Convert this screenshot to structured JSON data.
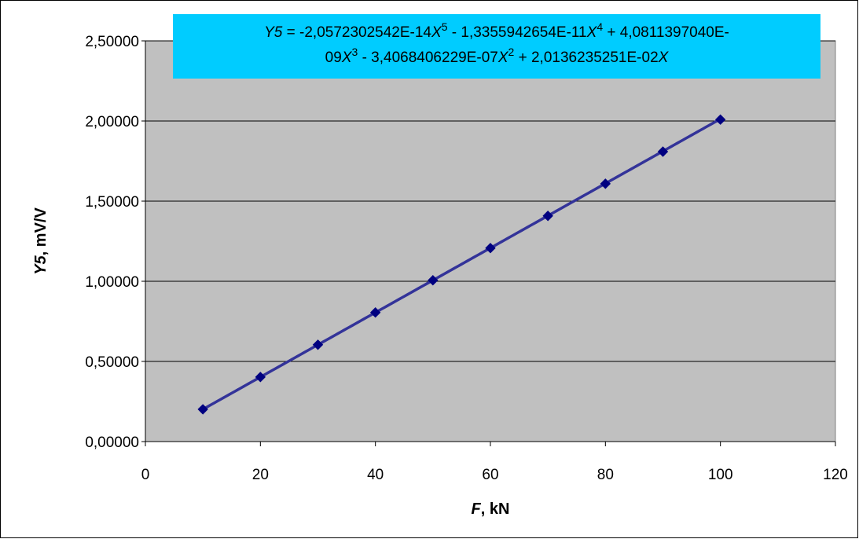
{
  "chart_data": {
    "type": "scatter",
    "trendline": "polynomial",
    "x": [
      10,
      20,
      30,
      40,
      50,
      60,
      70,
      80,
      90,
      100
    ],
    "y": [
      0.2013,
      0.40271,
      0.60404,
      0.80527,
      1.00637,
      1.20732,
      1.40807,
      1.60858,
      1.80882,
      2.00873
    ],
    "xlim": [
      0,
      120
    ],
    "ylim": [
      0,
      2.5
    ],
    "x_ticks": [
      0,
      20,
      40,
      60,
      80,
      100,
      120
    ],
    "y_ticks": [
      0,
      0.5,
      1,
      1.5,
      2,
      2.5
    ],
    "x_tick_labels": [
      "0",
      "20",
      "40",
      "60",
      "80",
      "100",
      "120"
    ],
    "y_tick_labels": [
      "0,00000",
      "0,50000",
      "1,00000",
      "1,50000",
      "2,00000",
      "2,50000"
    ],
    "xlabel": {
      "var": "F",
      "unit": ", kN"
    },
    "ylabel": {
      "var": "Y5",
      "unit": ", mV/V"
    },
    "equation": {
      "line1": [
        {
          "t": "Y5",
          "i": true
        },
        {
          "t": " = -2,0572302542E-14"
        },
        {
          "t": "X",
          "i": true
        },
        {
          "t": "5",
          "sup": true
        },
        {
          "t": " - 1,3355942654E-11"
        },
        {
          "t": "X",
          "i": true
        },
        {
          "t": "4",
          "sup": true
        },
        {
          "t": " + 4,0811397040E-"
        }
      ],
      "line2": [
        {
          "t": "09"
        },
        {
          "t": "X",
          "i": true
        },
        {
          "t": "3",
          "sup": true
        },
        {
          "t": " - 3,4068406229E-07"
        },
        {
          "t": "X",
          "i": true
        },
        {
          "t": "2",
          "sup": true
        },
        {
          "t": " + 2,0136235251E-02"
        },
        {
          "t": "X",
          "i": true
        }
      ],
      "coefficients": {
        "x5": -2.0572302542e-14,
        "x4": -1.3355942654e-11,
        "x3": 4.081139704e-09,
        "x2": -3.4068406229e-07,
        "x1": 0.020136235251
      }
    },
    "grid": {
      "horizontal": true,
      "vertical": false
    },
    "legend": "none",
    "colors": {
      "plot_background": "#c0c0c0",
      "line": "#333399",
      "marker": "#000080",
      "equation_box": "#00ccff",
      "gridline": "#000000"
    }
  }
}
